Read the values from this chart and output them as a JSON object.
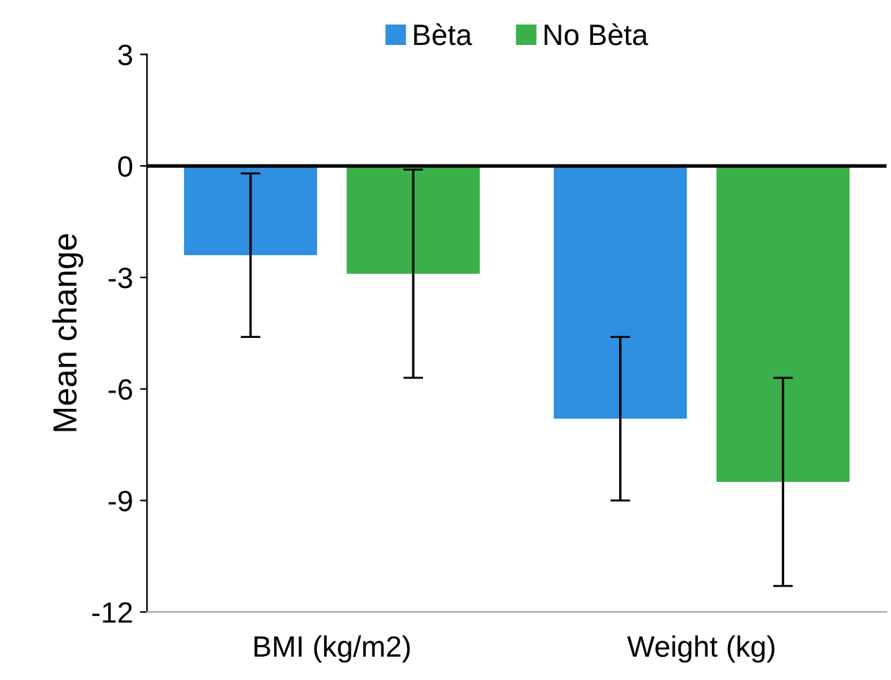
{
  "chart_data": {
    "type": "bar",
    "ylabel": "Mean change",
    "categories": [
      "BMI (kg/m2)",
      "Weight (kg)"
    ],
    "series": [
      {
        "name": "Bèta",
        "color": "#2f8fe0",
        "values": [
          -2.4,
          -6.8
        ],
        "errors": [
          2.2,
          2.2
        ]
      },
      {
        "name": "No Bèta",
        "color": "#3bb04a",
        "values": [
          -2.9,
          -8.5
        ],
        "errors": [
          2.8,
          2.8
        ]
      }
    ],
    "ylim": [
      -12,
      3
    ],
    "yticks": [
      -12,
      -9,
      -6,
      -3,
      0,
      3
    ],
    "ref_lines": [
      {
        "axis": "y",
        "value": 0,
        "color": "#000000"
      }
    ],
    "legend": "top",
    "grid": false
  }
}
